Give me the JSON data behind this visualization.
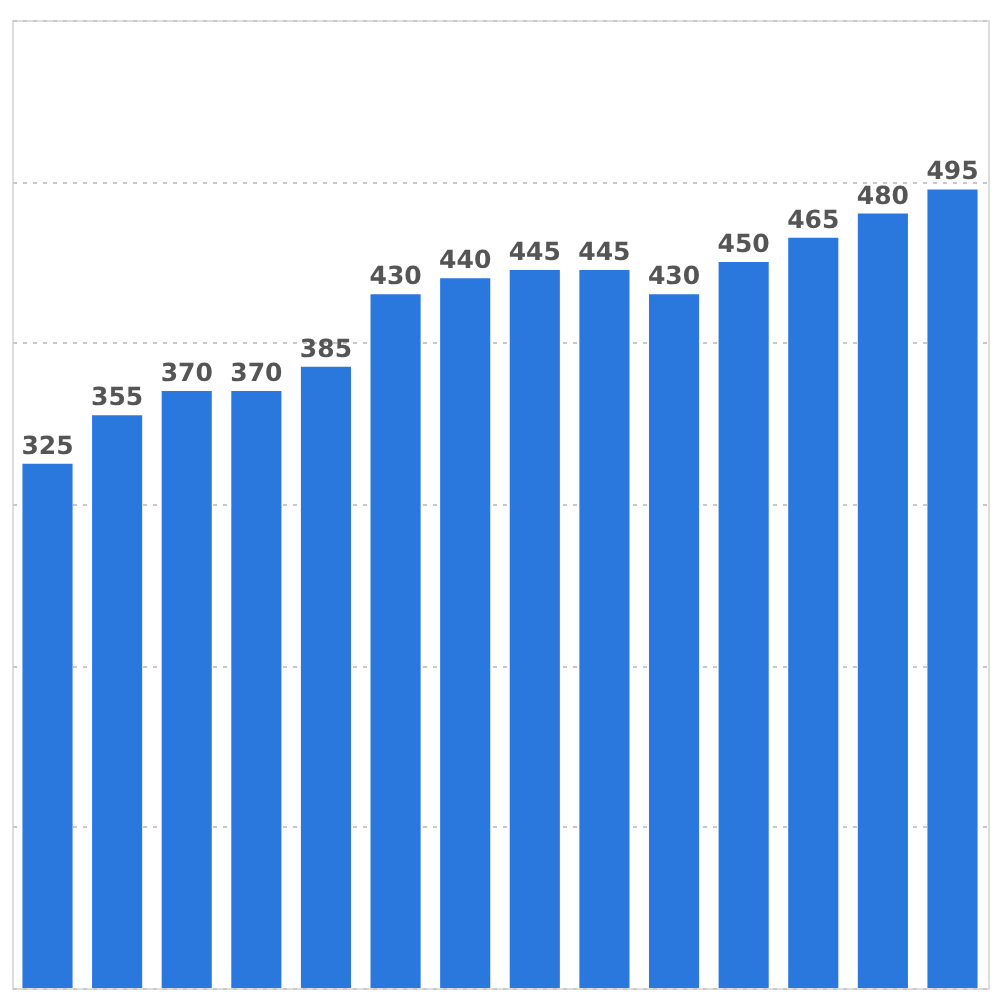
{
  "chart_data": {
    "type": "bar",
    "categories": [
      null,
      null,
      null,
      null,
      null,
      null,
      null,
      null,
      null,
      null,
      null,
      null,
      null,
      null
    ],
    "values": [
      325,
      355,
      370,
      370,
      385,
      430,
      440,
      445,
      445,
      430,
      450,
      465,
      480,
      495
    ],
    "color": "#2a78de",
    "ylim": [
      0,
      600
    ],
    "yticks": [
      {
        "value": 0,
        "label": null
      },
      {
        "value": 100,
        "label": null
      },
      {
        "value": 200,
        "label": null
      },
      {
        "value": 300,
        "label": null
      },
      {
        "value": 400,
        "label": null
      },
      {
        "value": 500,
        "label": null
      },
      {
        "value": 600,
        "label": null
      }
    ],
    "grid": "y",
    "tick_labels": false,
    "data_labels": true
  }
}
